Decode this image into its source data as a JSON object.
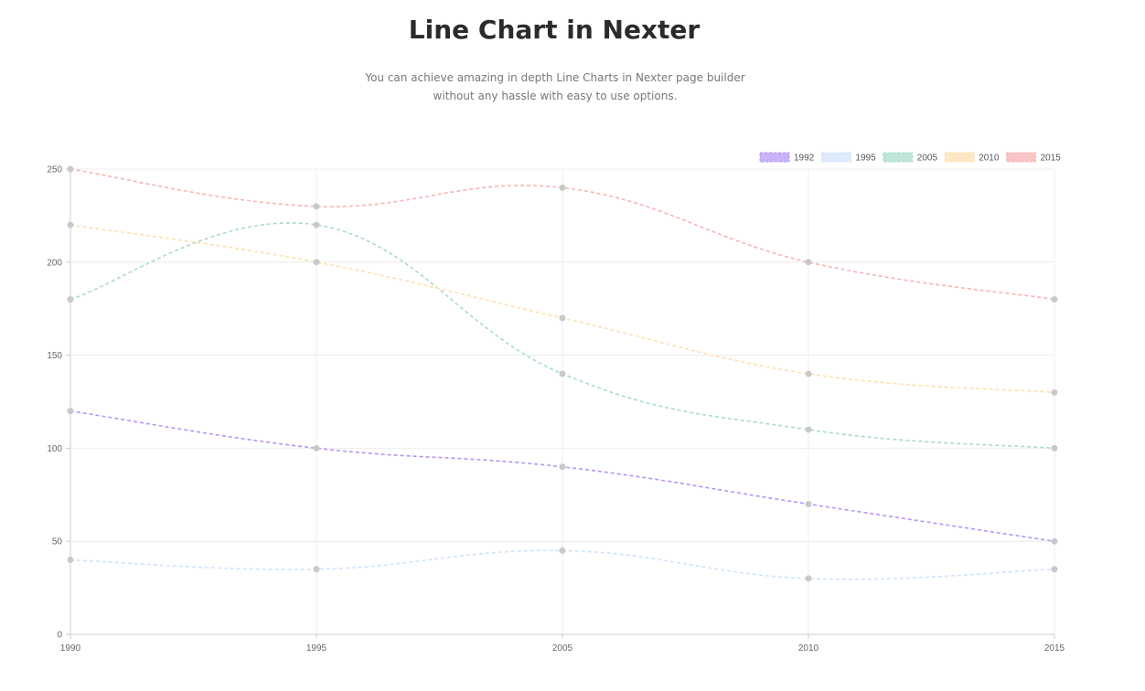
{
  "page": {
    "title": "Line Chart in Nexter",
    "subtitle": "You can achieve amazing in depth Line Charts in Nexter page builder without any hassle with easy to use options."
  },
  "chart_data": {
    "type": "line",
    "title": "",
    "xlabel": "",
    "ylabel": "",
    "x": [
      "1990",
      "1995",
      "2005",
      "2010",
      "2015"
    ],
    "ylim": [
      0,
      250
    ],
    "yticks": [
      0,
      50,
      100,
      150,
      200,
      250
    ],
    "grid": true,
    "legend_position": "top-right",
    "line_style": "dashed",
    "point_color": "#c9c9c9",
    "series": [
      {
        "name": "1992",
        "values": [
          120,
          100,
          90,
          70,
          50
        ],
        "color": "#b794f4",
        "fill": "#c9b2f7"
      },
      {
        "name": "1995",
        "values": [
          40,
          35,
          45,
          30,
          35
        ],
        "color": "#cfe3fb",
        "fill": "#ddebfd"
      },
      {
        "name": "2005",
        "values": [
          180,
          220,
          140,
          110,
          100
        ],
        "color": "#a8dcca",
        "fill": "#bfe6d8"
      },
      {
        "name": "2010",
        "values": [
          220,
          200,
          170,
          140,
          130
        ],
        "color": "#fde0b0",
        "fill": "#fee7c2"
      },
      {
        "name": "2015",
        "values": [
          250,
          230,
          240,
          200,
          180
        ],
        "color": "#f8b4b4",
        "fill": "#fac4c4"
      }
    ]
  }
}
